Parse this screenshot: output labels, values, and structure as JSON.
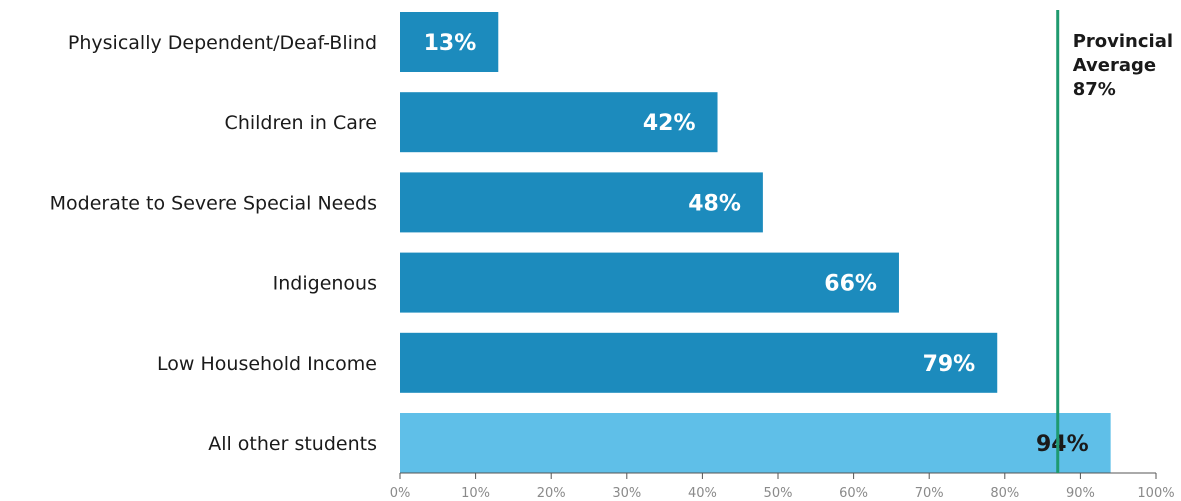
{
  "chart_data": {
    "type": "bar",
    "orientation": "horizontal",
    "categories": [
      "Physically Dependent/Deaf-Blind",
      "Children in Care",
      "Moderate to Severe Special Needs",
      "Indigenous",
      "Low Household Income",
      "All other students"
    ],
    "values": [
      13,
      42,
      48,
      66,
      79,
      94
    ],
    "value_labels": [
      "13%",
      "42%",
      "48%",
      "66%",
      "79%",
      "94%"
    ],
    "x_ticks": [
      "0%",
      "10%",
      "20%",
      "30%",
      "40%",
      "50%",
      "60%",
      "70%",
      "80%",
      "90%",
      "100%"
    ],
    "xlim": [
      0,
      100
    ],
    "title": "",
    "xlabel": "",
    "ylabel": "",
    "grid": false,
    "colors": {
      "bar": "#1c8bbd",
      "highlight_bar": "#5fbfe8",
      "bar_label": "#ffffff",
      "highlight_label": "#1a1a1a",
      "reference_line": "#1f9a6f",
      "axis": "#555555"
    },
    "reference_line": {
      "value": 87,
      "label_lines": [
        "Provincial",
        "Average",
        "87%"
      ]
    }
  }
}
